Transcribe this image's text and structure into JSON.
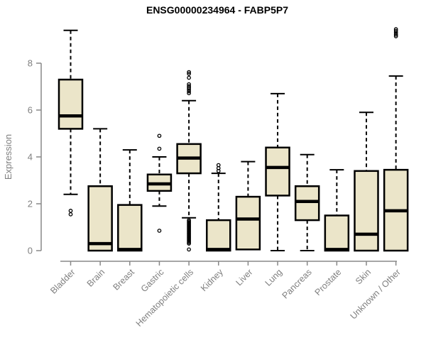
{
  "title": "ENSG00000234964 - FABP5P7",
  "chart_data": {
    "type": "boxplot",
    "title": "ENSG00000234964 - FABP5P7",
    "xlabel": "",
    "ylabel": "Expression",
    "ylim": [
      0,
      8
    ],
    "yticks": [
      "0",
      "2",
      "4",
      "6",
      "8"
    ],
    "grid": false,
    "legend": "none",
    "categories": [
      "Bladder",
      "Brain",
      "Breast",
      "Gastric",
      "Hematopoietic cells",
      "Kidney",
      "Liver",
      "Lung",
      "Pancreas",
      "Prostate",
      "Skin",
      "Unknown / Other"
    ],
    "series": [
      {
        "name": "Bladder",
        "whisker_low": 2.4,
        "q1": 5.2,
        "median": 5.75,
        "q3": 7.3,
        "whisker_high": 9.4,
        "outliers": [
          1.7,
          1.55
        ]
      },
      {
        "name": "Brain",
        "whisker_low": 0,
        "q1": 0,
        "median": 0.3,
        "q3": 2.75,
        "whisker_high": 5.2,
        "outliers": []
      },
      {
        "name": "Breast",
        "whisker_low": 0,
        "q1": 0,
        "median": 0.05,
        "q3": 1.95,
        "whisker_high": 4.3,
        "outliers": []
      },
      {
        "name": "Gastric",
        "whisker_low": 1.9,
        "q1": 2.55,
        "median": 2.85,
        "q3": 3.25,
        "whisker_high": 4.0,
        "outliers": [
          4.9,
          4.35,
          0.85
        ]
      },
      {
        "name": "Hematopoietic cells",
        "whisker_low": 1.4,
        "q1": 3.3,
        "median": 3.95,
        "q3": 4.55,
        "whisker_high": 6.4,
        "outliers": [
          7.62,
          7.55,
          7.38,
          7.1,
          7.02,
          6.95,
          6.88,
          6.8,
          6.72,
          1.3,
          1.25,
          1.2,
          1.15,
          1.1,
          1.05,
          1.0,
          0.95,
          0.9,
          0.85,
          0.8,
          0.75,
          0.7,
          0.65,
          0.6,
          0.55,
          0.5,
          0.45,
          0.4,
          0.35,
          0.3,
          0.05
        ]
      },
      {
        "name": "Kidney",
        "whisker_low": 0,
        "q1": 0,
        "median": 0.05,
        "q3": 1.3,
        "whisker_high": 3.3,
        "outliers": [
          3.65,
          3.52,
          3.4
        ]
      },
      {
        "name": "Liver",
        "whisker_low": 0.05,
        "q1": 0.05,
        "median": 1.35,
        "q3": 2.3,
        "whisker_high": 3.8,
        "outliers": []
      },
      {
        "name": "Lung",
        "whisker_low": 0,
        "q1": 2.35,
        "median": 3.55,
        "q3": 4.4,
        "whisker_high": 6.7,
        "outliers": []
      },
      {
        "name": "Pancreas",
        "whisker_low": 0,
        "q1": 1.3,
        "median": 2.1,
        "q3": 2.75,
        "whisker_high": 4.1,
        "outliers": []
      },
      {
        "name": "Prostate",
        "whisker_low": 0,
        "q1": 0,
        "median": 0.05,
        "q3": 1.5,
        "whisker_high": 3.45,
        "outliers": []
      },
      {
        "name": "Skin",
        "whisker_low": 0,
        "q1": 0,
        "median": 0.7,
        "q3": 3.4,
        "whisker_high": 5.9,
        "outliers": []
      },
      {
        "name": "Unknown / Other",
        "whisker_low": 0,
        "q1": 0,
        "median": 1.7,
        "q3": 3.45,
        "whisker_high": 7.45,
        "outliers": [
          9.45,
          9.38,
          9.3,
          9.22,
          9.15
        ]
      }
    ],
    "colors": {
      "box_fill": "#ebe5c9",
      "box_border": "#000000",
      "median": "#000000",
      "whisker": "#000000",
      "axis": "#888888",
      "tick_label": "#7f7f7f",
      "title": "#000000",
      "background": "#ffffff"
    }
  }
}
